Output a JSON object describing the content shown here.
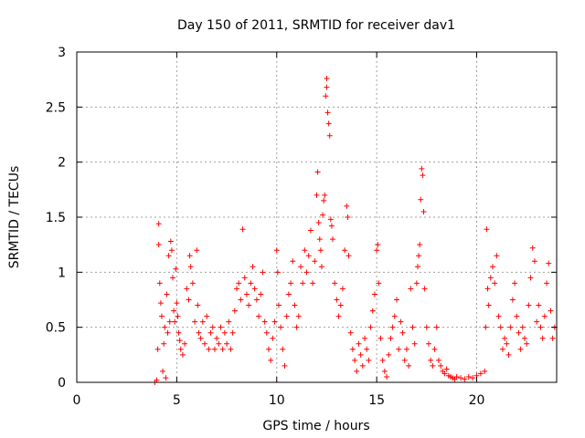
{
  "chart_data": {
    "type": "scatter",
    "title": "Day 150 of 2011, SRMTID for receiver dav1",
    "xlabel": "GPS time / hours",
    "ylabel": "SRMTID / TECUs",
    "xlim": [
      0,
      24
    ],
    "ylim": [
      0,
      3
    ],
    "x_ticks": [
      0,
      5,
      10,
      15,
      20
    ],
    "x_tick_labels": [
      "0",
      "5",
      "10",
      "15",
      "20"
    ],
    "y_ticks": [
      0,
      0.5,
      1,
      1.5,
      2,
      2.5,
      3
    ],
    "y_tick_labels": [
      "0",
      "0.5",
      "1",
      "1.5",
      "2",
      "2.5",
      "3"
    ],
    "grid": true,
    "marker": "+",
    "color": "#ff0000",
    "series": [
      {
        "name": "dav1",
        "points": [
          [
            3.9,
            0.0
          ],
          [
            4.0,
            0.02
          ],
          [
            4.05,
            0.3
          ],
          [
            4.1,
            1.44
          ],
          [
            4.1,
            1.25
          ],
          [
            4.15,
            0.9
          ],
          [
            4.2,
            0.72
          ],
          [
            4.25,
            0.6
          ],
          [
            4.3,
            0.1
          ],
          [
            4.35,
            0.35
          ],
          [
            4.4,
            0.5
          ],
          [
            4.45,
            0.04
          ],
          [
            4.5,
            0.8
          ],
          [
            4.55,
            0.45
          ],
          [
            4.6,
            1.15
          ],
          [
            4.65,
            0.55
          ],
          [
            4.7,
            1.28
          ],
          [
            4.75,
            1.2
          ],
          [
            4.8,
            0.95
          ],
          [
            4.85,
            0.65
          ],
          [
            4.9,
            0.55
          ],
          [
            4.95,
            1.03
          ],
          [
            5.0,
            0.72
          ],
          [
            5.05,
            0.6
          ],
          [
            5.1,
            0.45
          ],
          [
            5.15,
            0.38
          ],
          [
            5.2,
            0.3
          ],
          [
            5.3,
            0.25
          ],
          [
            5.4,
            0.35
          ],
          [
            5.5,
            0.85
          ],
          [
            5.6,
            0.75
          ],
          [
            5.65,
            1.15
          ],
          [
            5.7,
            1.05
          ],
          [
            5.8,
            0.9
          ],
          [
            5.9,
            0.55
          ],
          [
            6.0,
            1.2
          ],
          [
            6.05,
            0.7
          ],
          [
            6.1,
            0.45
          ],
          [
            6.2,
            0.4
          ],
          [
            6.3,
            0.55
          ],
          [
            6.4,
            0.35
          ],
          [
            6.5,
            0.6
          ],
          [
            6.6,
            0.3
          ],
          [
            6.7,
            0.45
          ],
          [
            6.8,
            0.5
          ],
          [
            6.9,
            0.3
          ],
          [
            7.0,
            0.4
          ],
          [
            7.1,
            0.35
          ],
          [
            7.2,
            0.5
          ],
          [
            7.3,
            0.3
          ],
          [
            7.4,
            0.45
          ],
          [
            7.5,
            0.35
          ],
          [
            7.6,
            0.55
          ],
          [
            7.7,
            0.3
          ],
          [
            7.8,
            0.45
          ],
          [
            7.9,
            0.65
          ],
          [
            8.0,
            0.85
          ],
          [
            8.1,
            0.9
          ],
          [
            8.2,
            0.75
          ],
          [
            8.3,
            1.39
          ],
          [
            8.4,
            0.95
          ],
          [
            8.5,
            0.8
          ],
          [
            8.6,
            0.7
          ],
          [
            8.7,
            0.9
          ],
          [
            8.8,
            1.05
          ],
          [
            8.9,
            0.85
          ],
          [
            9.0,
            0.75
          ],
          [
            9.1,
            0.6
          ],
          [
            9.2,
            0.8
          ],
          [
            9.3,
            1.0
          ],
          [
            9.4,
            0.55
          ],
          [
            9.5,
            0.45
          ],
          [
            9.6,
            0.3
          ],
          [
            9.7,
            0.2
          ],
          [
            9.8,
            0.4
          ],
          [
            9.9,
            0.55
          ],
          [
            10.0,
            1.2
          ],
          [
            10.05,
            1.0
          ],
          [
            10.1,
            0.7
          ],
          [
            10.2,
            0.5
          ],
          [
            10.3,
            0.3
          ],
          [
            10.4,
            0.15
          ],
          [
            10.5,
            0.6
          ],
          [
            10.6,
            0.8
          ],
          [
            10.7,
            0.9
          ],
          [
            10.8,
            1.1
          ],
          [
            10.9,
            0.7
          ],
          [
            11.0,
            0.5
          ],
          [
            11.1,
            0.6
          ],
          [
            11.2,
            1.05
          ],
          [
            11.3,
            0.9
          ],
          [
            11.4,
            1.2
          ],
          [
            11.5,
            1.0
          ],
          [
            11.6,
            1.15
          ],
          [
            11.7,
            1.38
          ],
          [
            11.8,
            0.9
          ],
          [
            11.9,
            1.1
          ],
          [
            12.0,
            1.7
          ],
          [
            12.05,
            1.91
          ],
          [
            12.1,
            1.45
          ],
          [
            12.15,
            1.3
          ],
          [
            12.2,
            1.2
          ],
          [
            12.25,
            1.05
          ],
          [
            12.3,
            1.52
          ],
          [
            12.35,
            1.65
          ],
          [
            12.4,
            1.7
          ],
          [
            12.45,
            2.6
          ],
          [
            12.5,
            2.76
          ],
          [
            12.5,
            2.68
          ],
          [
            12.55,
            2.45
          ],
          [
            12.6,
            2.35
          ],
          [
            12.65,
            2.24
          ],
          [
            12.7,
            1.48
          ],
          [
            12.75,
            1.42
          ],
          [
            12.8,
            1.3
          ],
          [
            12.9,
            0.9
          ],
          [
            13.0,
            0.75
          ],
          [
            13.1,
            0.6
          ],
          [
            13.2,
            0.7
          ],
          [
            13.3,
            0.85
          ],
          [
            13.4,
            1.2
          ],
          [
            13.5,
            1.6
          ],
          [
            13.55,
            1.5
          ],
          [
            13.6,
            1.15
          ],
          [
            13.7,
            0.45
          ],
          [
            13.8,
            0.3
          ],
          [
            13.9,
            0.2
          ],
          [
            14.0,
            0.1
          ],
          [
            14.1,
            0.35
          ],
          [
            14.2,
            0.25
          ],
          [
            14.3,
            0.15
          ],
          [
            14.4,
            0.4
          ],
          [
            14.5,
            0.3
          ],
          [
            14.6,
            0.2
          ],
          [
            14.7,
            0.5
          ],
          [
            14.8,
            0.65
          ],
          [
            14.9,
            0.8
          ],
          [
            15.0,
            1.2
          ],
          [
            15.05,
            1.25
          ],
          [
            15.1,
            0.9
          ],
          [
            15.2,
            0.4
          ],
          [
            15.3,
            0.2
          ],
          [
            15.4,
            0.1
          ],
          [
            15.5,
            0.05
          ],
          [
            15.6,
            0.25
          ],
          [
            15.7,
            0.4
          ],
          [
            15.8,
            0.5
          ],
          [
            15.9,
            0.6
          ],
          [
            16.0,
            0.75
          ],
          [
            16.1,
            0.3
          ],
          [
            16.2,
            0.55
          ],
          [
            16.3,
            0.45
          ],
          [
            16.4,
            0.2
          ],
          [
            16.5,
            0.3
          ],
          [
            16.6,
            0.15
          ],
          [
            16.7,
            0.85
          ],
          [
            16.8,
            0.5
          ],
          [
            16.9,
            0.35
          ],
          [
            17.0,
            0.9
          ],
          [
            17.05,
            1.05
          ],
          [
            17.1,
            1.15
          ],
          [
            17.15,
            1.25
          ],
          [
            17.2,
            1.66
          ],
          [
            17.25,
            1.94
          ],
          [
            17.3,
            1.88
          ],
          [
            17.35,
            1.55
          ],
          [
            17.4,
            0.85
          ],
          [
            17.5,
            0.5
          ],
          [
            17.6,
            0.35
          ],
          [
            17.7,
            0.2
          ],
          [
            17.8,
            0.15
          ],
          [
            17.9,
            0.3
          ],
          [
            18.0,
            0.5
          ],
          [
            18.1,
            0.2
          ],
          [
            18.2,
            0.15
          ],
          [
            18.3,
            0.1
          ],
          [
            18.4,
            0.08
          ],
          [
            18.5,
            0.12
          ],
          [
            18.6,
            0.06
          ],
          [
            18.7,
            0.05
          ],
          [
            18.8,
            0.04
          ],
          [
            18.9,
            0.03
          ],
          [
            19.0,
            0.05
          ],
          [
            19.2,
            0.04
          ],
          [
            19.4,
            0.03
          ],
          [
            19.6,
            0.05
          ],
          [
            19.8,
            0.04
          ],
          [
            20.0,
            0.06
          ],
          [
            20.2,
            0.08
          ],
          [
            20.4,
            0.1
          ],
          [
            20.45,
            0.5
          ],
          [
            20.5,
            1.39
          ],
          [
            20.55,
            0.85
          ],
          [
            20.6,
            0.7
          ],
          [
            20.7,
            0.95
          ],
          [
            20.8,
            1.05
          ],
          [
            20.9,
            0.9
          ],
          [
            21.0,
            1.15
          ],
          [
            21.1,
            0.6
          ],
          [
            21.2,
            0.5
          ],
          [
            21.3,
            0.3
          ],
          [
            21.4,
            0.4
          ],
          [
            21.5,
            0.35
          ],
          [
            21.6,
            0.25
          ],
          [
            21.7,
            0.5
          ],
          [
            21.8,
            0.75
          ],
          [
            21.9,
            0.9
          ],
          [
            22.0,
            0.6
          ],
          [
            22.1,
            0.45
          ],
          [
            22.2,
            0.3
          ],
          [
            22.3,
            0.5
          ],
          [
            22.4,
            0.4
          ],
          [
            22.5,
            0.35
          ],
          [
            22.6,
            0.7
          ],
          [
            22.7,
            0.95
          ],
          [
            22.8,
            1.22
          ],
          [
            22.9,
            1.1
          ],
          [
            23.0,
            0.55
          ],
          [
            23.1,
            0.7
          ],
          [
            23.2,
            0.5
          ],
          [
            23.3,
            0.4
          ],
          [
            23.4,
            0.6
          ],
          [
            23.5,
            0.9
          ],
          [
            23.6,
            1.08
          ],
          [
            23.7,
            0.65
          ],
          [
            23.8,
            0.4
          ],
          [
            23.9,
            0.5
          ]
        ]
      }
    ]
  }
}
